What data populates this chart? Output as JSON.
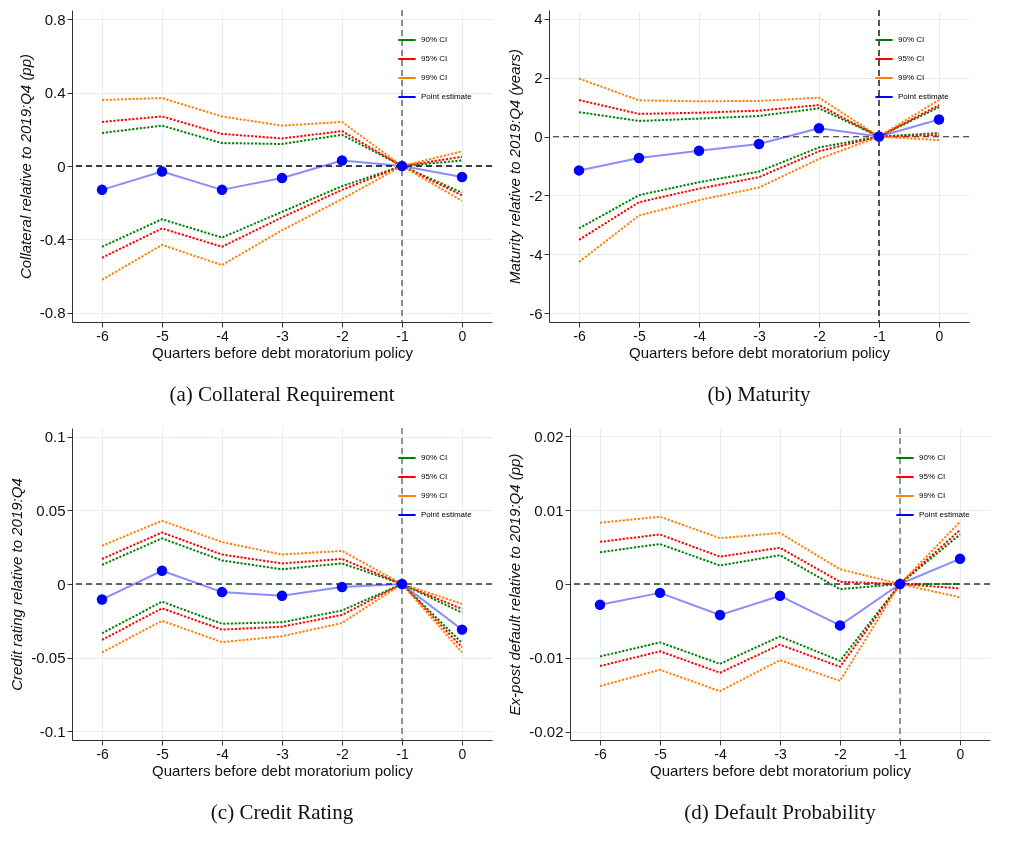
{
  "chart_data": [
    {
      "type": "line",
      "title": "(a) Collateral Requirement",
      "xlabel": "Quarters before debt moratorium policy",
      "ylabel": "Collateral relative to 2019:Q4 (pp)",
      "x": [
        -6,
        -5,
        -4,
        -3,
        -2,
        -1,
        0
      ],
      "xlim": [
        -6.5,
        0.5
      ],
      "xticks": [
        -6,
        -5,
        -4,
        -3,
        -2,
        -1,
        0
      ],
      "ylim": [
        -0.85,
        0.85
      ],
      "yticks": [
        -0.8,
        -0.4,
        0,
        0.4,
        0.8
      ],
      "grid": true,
      "legend": "top right",
      "series": [
        {
          "name": "90% CI",
          "color": "#008000",
          "line_style": "dotted",
          "values": [
            0.18,
            0.22,
            0.125,
            0.12,
            0.17,
            0,
            0.03
          ]
        },
        {
          "name": "95% CI",
          "color": "#ff0000",
          "line_style": "dotted",
          "values": [
            0.24,
            0.27,
            0.175,
            0.15,
            0.19,
            0,
            0.05
          ]
        },
        {
          "name": "99% CI",
          "color": "#ff8000",
          "line_style": "dotted",
          "values": [
            0.36,
            0.37,
            0.27,
            0.22,
            0.24,
            0,
            0.08
          ]
        },
        {
          "name": "Point estimate",
          "color": "#0000ff",
          "line_style": "solid",
          "marker": "circle",
          "values": [
            -0.13,
            -0.03,
            -0.13,
            -0.065,
            0.03,
            0,
            -0.06
          ]
        },
        {
          "color": "#008000",
          "line_style": "dotted",
          "values": [
            -0.44,
            -0.29,
            -0.39,
            -0.25,
            -0.11,
            0,
            -0.145
          ]
        },
        {
          "color": "#ff0000",
          "line_style": "dotted",
          "values": [
            -0.5,
            -0.34,
            -0.44,
            -0.28,
            -0.13,
            0,
            -0.16
          ]
        },
        {
          "color": "#ff8000",
          "line_style": "dotted",
          "values": [
            -0.62,
            -0.43,
            -0.54,
            -0.35,
            -0.18,
            0,
            -0.19
          ]
        }
      ],
      "ref_lines": [
        {
          "axis": "y",
          "value": 0,
          "color": "#000000",
          "line_style": "dashed"
        },
        {
          "axis": "x",
          "value": -1,
          "color": "#555555",
          "line_style": "dashed"
        }
      ]
    },
    {
      "type": "line",
      "title": "(b) Maturity",
      "xlabel": "Quarters before debt moratorium policy",
      "ylabel": "Maturity relative to 2019:Q4 (years)",
      "x": [
        -6,
        -5,
        -4,
        -3,
        -2,
        -1,
        0
      ],
      "xlim": [
        -6.5,
        0.5
      ],
      "xticks": [
        -6,
        -5,
        -4,
        -3,
        -2,
        -1,
        0
      ],
      "ylim": [
        -6.3,
        4.3
      ],
      "yticks": [
        -6,
        -4,
        -2,
        0,
        2,
        4
      ],
      "grid": true,
      "legend": "top right",
      "series": [
        {
          "name": "90% CI",
          "color": "#008000",
          "line_style": "dotted",
          "values": [
            0.83,
            0.53,
            0.61,
            0.7,
            0.96,
            0,
            1.0
          ]
        },
        {
          "name": "95% CI",
          "color": "#ff0000",
          "line_style": "dotted",
          "values": [
            1.24,
            0.77,
            0.81,
            0.88,
            1.07,
            0,
            1.07
          ]
        },
        {
          "name": "99% CI",
          "color": "#ff8000",
          "line_style": "dotted",
          "values": [
            1.97,
            1.23,
            1.2,
            1.21,
            1.32,
            0,
            1.25
          ]
        },
        {
          "name": "Point estimate",
          "color": "#0000ff",
          "line_style": "solid",
          "marker": "circle",
          "values": [
            -1.15,
            -0.73,
            -0.48,
            -0.25,
            0.28,
            0,
            0.58
          ]
        },
        {
          "color": "#008000",
          "line_style": "dotted",
          "values": [
            -3.12,
            -1.99,
            -1.55,
            -1.19,
            -0.37,
            0,
            0.12
          ]
        },
        {
          "color": "#ff0000",
          "line_style": "dotted",
          "values": [
            -3.51,
            -2.23,
            -1.77,
            -1.38,
            -0.5,
            0,
            0.05
          ]
        },
        {
          "color": "#ff8000",
          "line_style": "dotted",
          "values": [
            -4.26,
            -2.68,
            -2.16,
            -1.73,
            -0.76,
            0,
            -0.12
          ]
        }
      ],
      "ref_lines": [
        {
          "axis": "y",
          "value": 0,
          "color": "#555555",
          "line_style": "dashed"
        },
        {
          "axis": "x",
          "value": -1,
          "color": "#000000",
          "line_style": "dashed"
        }
      ]
    },
    {
      "type": "line",
      "title": "(c) Credit Rating",
      "xlabel": "Quarters before debt moratorium policy",
      "ylabel": "Credit rating relative to 2019:Q4",
      "x": [
        -6,
        -5,
        -4,
        -3,
        -2,
        -1,
        0
      ],
      "xlim": [
        -6.5,
        0.5
      ],
      "xticks": [
        -6,
        -5,
        -4,
        -3,
        -2,
        -1,
        0
      ],
      "ylim": [
        -0.106,
        0.106
      ],
      "yticks": [
        -0.1,
        -0.05,
        0,
        0.05,
        0.1
      ],
      "grid": true,
      "legend": "top right",
      "series": [
        {
          "name": "90% CI",
          "color": "#008000",
          "line_style": "dotted",
          "values": [
            0.013,
            0.031,
            0.016,
            0.01,
            0.014,
            0,
            -0.0195
          ]
        },
        {
          "name": "95% CI",
          "color": "#ff0000",
          "line_style": "dotted",
          "values": [
            0.017,
            0.035,
            0.02,
            0.014,
            0.017,
            0,
            -0.017
          ]
        },
        {
          "name": "99% CI",
          "color": "#ff8000",
          "line_style": "dotted",
          "values": [
            0.026,
            0.043,
            0.0285,
            0.02,
            0.0225,
            0,
            -0.0135
          ]
        },
        {
          "name": "Point estimate",
          "color": "#0000ff",
          "line_style": "solid",
          "marker": "circle",
          "values": [
            -0.0105,
            0.009,
            -0.0055,
            -0.008,
            -0.002,
            0,
            -0.031
          ]
        },
        {
          "color": "#008000",
          "line_style": "dotted",
          "values": [
            -0.0335,
            -0.012,
            -0.027,
            -0.026,
            -0.018,
            0,
            -0.04
          ]
        },
        {
          "color": "#ff0000",
          "line_style": "dotted",
          "values": [
            -0.038,
            -0.0165,
            -0.031,
            -0.029,
            -0.021,
            0,
            -0.043
          ]
        },
        {
          "color": "#ff8000",
          "line_style": "dotted",
          "values": [
            -0.0465,
            -0.025,
            -0.0395,
            -0.0355,
            -0.0265,
            0,
            -0.0465
          ]
        }
      ],
      "ref_lines": [
        {
          "axis": "y",
          "value": 0,
          "color": "#333333",
          "line_style": "dashed"
        },
        {
          "axis": "x",
          "value": -1,
          "color": "#666666",
          "line_style": "dashed"
        }
      ]
    },
    {
      "type": "line",
      "title": "(d) Default Probability",
      "xlabel": "Quarters before debt moratorium policy",
      "ylabel": "Ex-post default relative to 2019:Q4 (pp)",
      "x": [
        -6,
        -5,
        -4,
        -3,
        -2,
        -1,
        0
      ],
      "xlim": [
        -6.5,
        0.5
      ],
      "xticks": [
        -6,
        -5,
        -4,
        -3,
        -2,
        -1,
        0
      ],
      "ylim": [
        -0.0211,
        0.0211
      ],
      "yticks": [
        -0.02,
        -0.01,
        0,
        0.01,
        0.02
      ],
      "grid": true,
      "legend": "top right",
      "series": [
        {
          "name": "90% CI",
          "color": "#008000",
          "line_style": "dotted",
          "values": [
            0.0043,
            0.0054,
            0.0025,
            0.0039,
            -0.0007,
            0,
            0.0067
          ]
        },
        {
          "name": "95% CI",
          "color": "#ff0000",
          "line_style": "dotted",
          "values": [
            0.0057,
            0.0067,
            0.0037,
            0.0049,
            0.0003,
            0,
            0.0073
          ]
        },
        {
          "name": "99% CI",
          "color": "#ff8000",
          "line_style": "dotted",
          "values": [
            0.0083,
            0.0091,
            0.0062,
            0.0069,
            0.002,
            0,
            0.0084
          ]
        },
        {
          "name": "Point estimate",
          "color": "#0000ff",
          "line_style": "solid",
          "marker": "circle",
          "values": [
            -0.0028,
            -0.0012,
            -0.0042,
            -0.0016,
            -0.0056,
            0,
            0.0034
          ]
        },
        {
          "color": "#008000",
          "line_style": "dotted",
          "values": [
            -0.0098,
            -0.0079,
            -0.0108,
            -0.0071,
            -0.0104,
            0,
            0
          ]
        },
        {
          "color": "#ff0000",
          "line_style": "dotted",
          "values": [
            -0.0111,
            -0.0091,
            -0.012,
            -0.0082,
            -0.0112,
            0,
            -0.0006
          ]
        },
        {
          "color": "#ff8000",
          "line_style": "dotted",
          "values": [
            -0.0138,
            -0.0116,
            -0.0145,
            -0.0103,
            -0.0131,
            0,
            -0.0018
          ]
        }
      ],
      "ref_lines": [
        {
          "axis": "y",
          "value": 0,
          "color": "#333333",
          "line_style": "dashed"
        },
        {
          "axis": "x",
          "value": -1,
          "color": "#666666",
          "line_style": "dashed"
        }
      ]
    }
  ]
}
